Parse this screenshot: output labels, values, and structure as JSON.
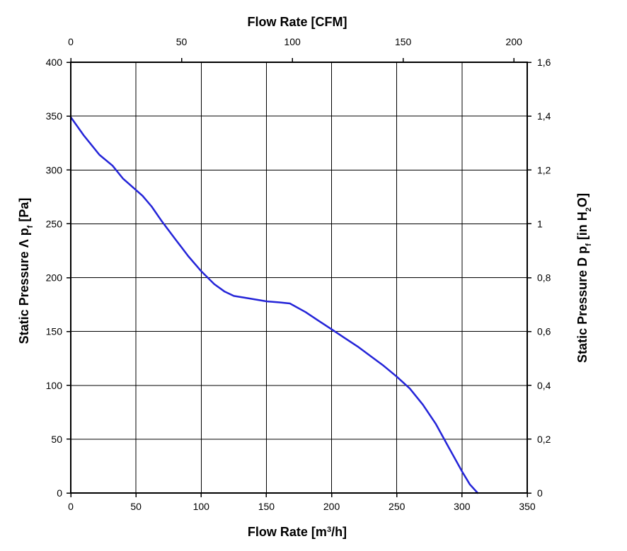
{
  "chart_data": {
    "type": "line",
    "title": "",
    "colors": {
      "curve": "#2424d8",
      "grid": "#000000"
    },
    "grid": true,
    "legend": "none",
    "axes": {
      "x_bottom": {
        "label_prefix": "Flow Rate [m",
        "label_sup": "3",
        "label_suffix": "/h]",
        "range": [
          0,
          350
        ],
        "ticks": [
          0,
          50,
          100,
          150,
          200,
          250,
          300,
          350
        ],
        "tick_labels": [
          "0",
          "50",
          "100",
          "150",
          "200",
          "250",
          "300",
          "350"
        ]
      },
      "x_top": {
        "label": "Flow Rate [CFM]",
        "range": [
          0,
          206
        ],
        "ticks": [
          0,
          50,
          100,
          150,
          200
        ],
        "tick_labels": [
          "0",
          "50",
          "100",
          "150",
          "200"
        ]
      },
      "y_left": {
        "label_prefix": "Static Pressure Λ p",
        "label_sub": "f",
        "label_suffix": " [Pa]",
        "range": [
          0,
          400
        ],
        "ticks": [
          0,
          50,
          100,
          150,
          200,
          250,
          300,
          350,
          400
        ],
        "tick_labels": [
          "0",
          "50",
          "100",
          "150",
          "200",
          "250",
          "300",
          "350",
          "400"
        ]
      },
      "y_right": {
        "label_prefix": "Static Pressure D p",
        "label_sub1": "f",
        "label_mid": " [in H",
        "label_sub2": "2",
        "label_suffix": "O]",
        "range": [
          0,
          1.6
        ],
        "ticks": [
          0,
          0.2,
          0.4,
          0.6,
          0.8,
          1.0,
          1.2,
          1.4,
          1.6
        ],
        "tick_labels": [
          "0",
          "0,2",
          "0,4",
          "0,6",
          "0,8",
          "1",
          "1,2",
          "1,4",
          "1,6"
        ]
      }
    },
    "series": [
      {
        "x": [
          0,
          10,
          22,
          32,
          40,
          55,
          62,
          70,
          80,
          90,
          100,
          110,
          118,
          125,
          135,
          150,
          160,
          168,
          180,
          190,
          200,
          210,
          220,
          230,
          240,
          250,
          260,
          270,
          280,
          290,
          300,
          306,
          312
        ],
        "y": [
          349,
          332,
          314,
          304,
          292,
          276,
          266,
          252,
          236,
          220,
          206,
          194,
          187,
          183,
          181,
          178,
          177,
          176,
          168,
          160,
          152,
          144,
          136,
          127,
          118,
          108,
          97,
          82,
          64,
          42,
          20,
          8,
          0
        ]
      }
    ]
  }
}
